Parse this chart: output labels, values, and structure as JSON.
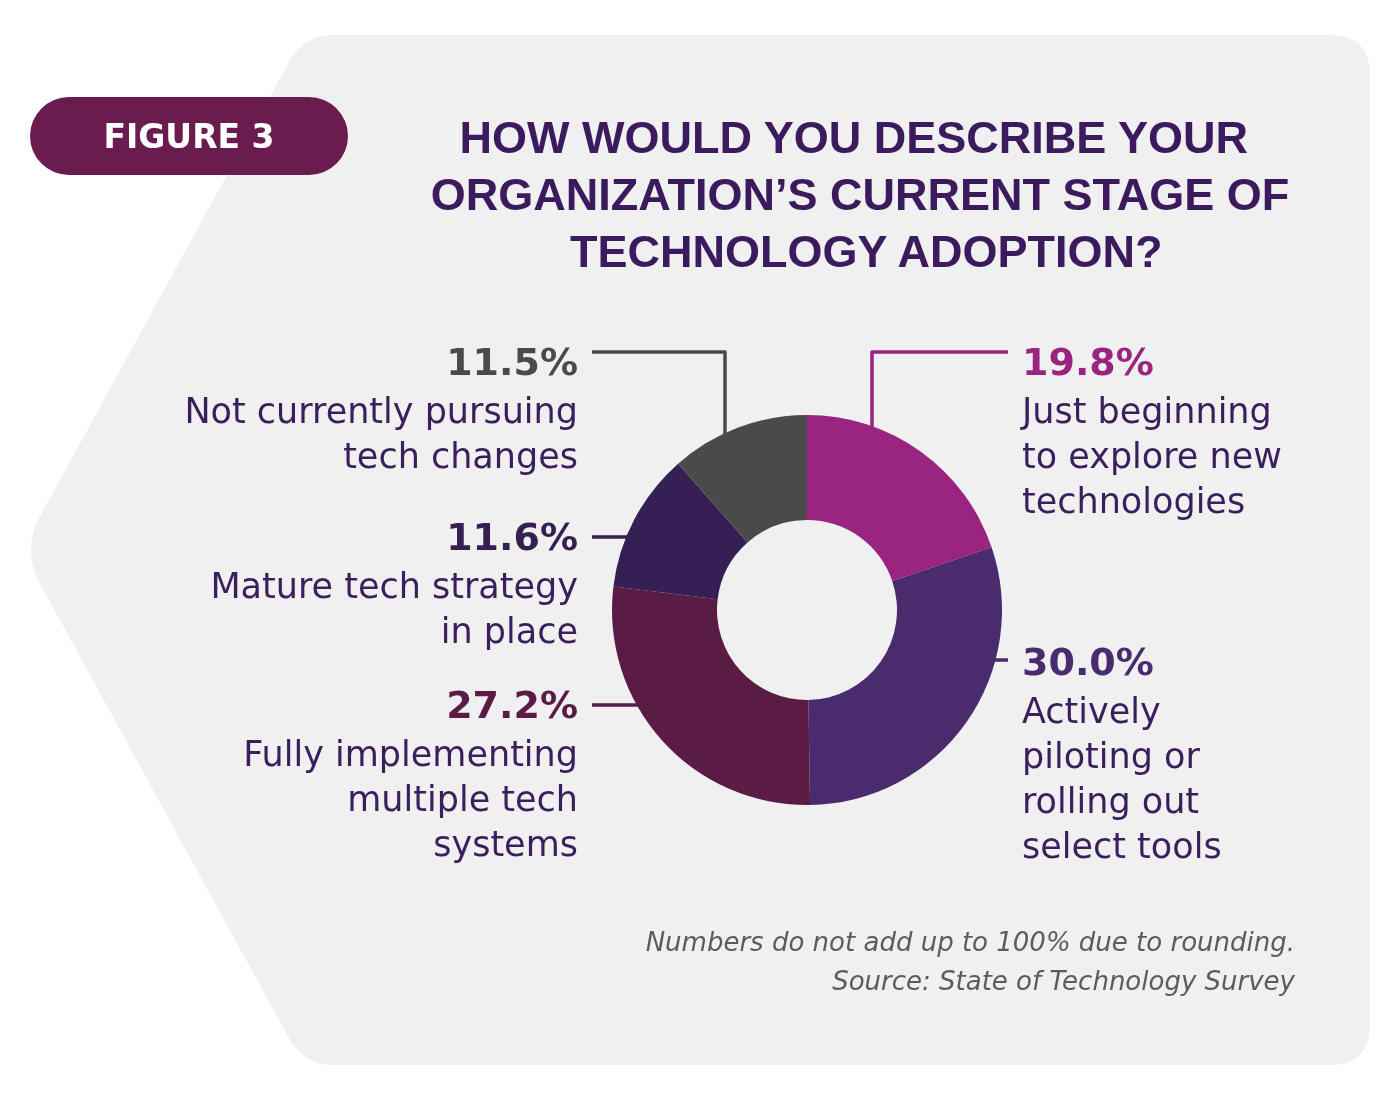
{
  "chart_data": {
    "type": "donut",
    "title": "HOW WOULD YOU DESCRIBE YOUR ORGANIZATION’S CURRENT STAGE OF TECHNOLOGY ADOPTION?",
    "categories": [
      "Just beginning to explore new technologies",
      "Actively piloting or rolling out select tools",
      "Fully implementing multiple tech systems",
      "Mature tech strategy in place",
      "Not currently pursuing tech changes"
    ],
    "values": [
      19.8,
      30.0,
      27.2,
      11.6,
      11.5
    ],
    "value_labels": [
      "19.8%",
      "30.0%",
      "27.2%",
      "11.6%",
      "11.5%"
    ],
    "colors": [
      "#9a2581",
      "#4a2b6e",
      "#5a1b45",
      "#361f52",
      "#4a4a4a"
    ],
    "annotations": [
      "FIGURE 3",
      "Numbers do not add up to 100% due to rounding.",
      "Source: State of Technology Survey"
    ]
  }
}
